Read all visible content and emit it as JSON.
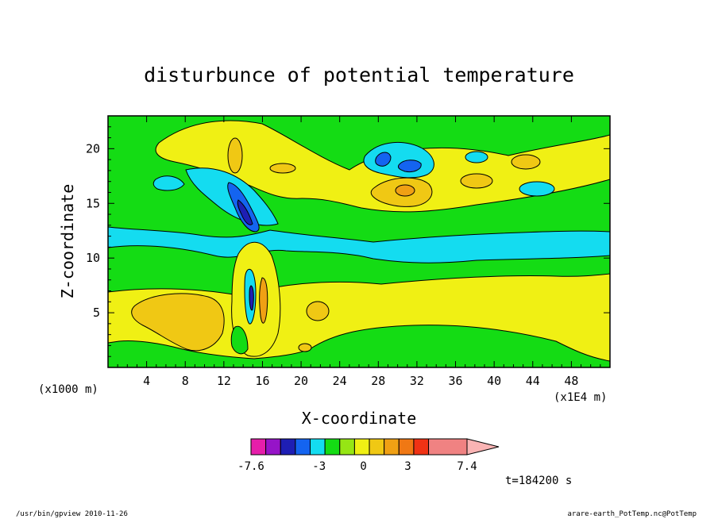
{
  "chart_data": {
    "type": "heatmap",
    "title": "disturbunce of potential temperature",
    "xlabel": "X-coordinate",
    "ylabel": "Z-coordinate",
    "x_unit": "(x1E4 m)",
    "y_unit": "(x1000 m)",
    "xlim": [
      0,
      52
    ],
    "ylim": [
      0,
      23
    ],
    "x_ticks": [
      "4",
      "8",
      "12",
      "16",
      "20",
      "24",
      "28",
      "32",
      "36",
      "40",
      "44",
      "48"
    ],
    "x_tick_values": [
      4,
      8,
      12,
      16,
      20,
      24,
      28,
      32,
      36,
      40,
      44,
      48
    ],
    "y_ticks": [
      "5",
      "10",
      "15",
      "20"
    ],
    "y_tick_values": [
      5,
      10,
      15,
      20
    ],
    "grid": false,
    "colorbar": {
      "levels": [
        -7.6,
        -6.6,
        -5.6,
        -4.6,
        -3.6,
        -2.6,
        -1.6,
        -0.6,
        0.4,
        1.4,
        2.4,
        3.4,
        4.4,
        7.4
      ],
      "colors": [
        "#e61eaa",
        "#9614c8",
        "#1e1eb4",
        "#1464f0",
        "#14dcf0",
        "#14dc14",
        "#96e614",
        "#f0f014",
        "#f0c814",
        "#f0a014",
        "#f07814",
        "#f03214",
        "#f08282",
        "#fab4b4"
      ],
      "labels": [
        "-7.6",
        "-3",
        "0",
        "3",
        "7.4"
      ],
      "label_values": [
        -7.6,
        -3,
        0,
        3,
        7.4
      ]
    },
    "bands": [
      {
        "level": 0.6,
        "z_min": 1.5,
        "z_max": 6.5
      },
      {
        "level": -0.5,
        "z_min": 6.5,
        "z_max": 8.5
      },
      {
        "level": -2.0,
        "z_min": 9.5,
        "z_max": 12.5
      },
      {
        "level": 0.6,
        "z_min": 13.0,
        "z_max": 20.0
      }
    ],
    "blobs": [
      {
        "x": 6,
        "z": 5,
        "level": 1.6
      },
      {
        "x": 15,
        "z": 16,
        "level": -4.5
      },
      {
        "x": 14.8,
        "z": 6,
        "level": -3.2
      },
      {
        "x": 29,
        "z": 19.5,
        "level": -4.3
      },
      {
        "x": 31,
        "z": 18.5,
        "level": -4.3
      },
      {
        "x": 30,
        "z": 16,
        "level": 2.6
      },
      {
        "x": 43,
        "z": 18.5,
        "level": 1.6
      },
      {
        "x": 37,
        "z": 17,
        "level": 1.6
      },
      {
        "x": 12.5,
        "z": 19.5,
        "level": 1.6
      }
    ],
    "annotation": "t=184200 s"
  },
  "footer": {
    "left": "/usr/bin/gpview   2010-11-26",
    "right": "arare-earth_PotTemp.nc@PotTemp"
  }
}
